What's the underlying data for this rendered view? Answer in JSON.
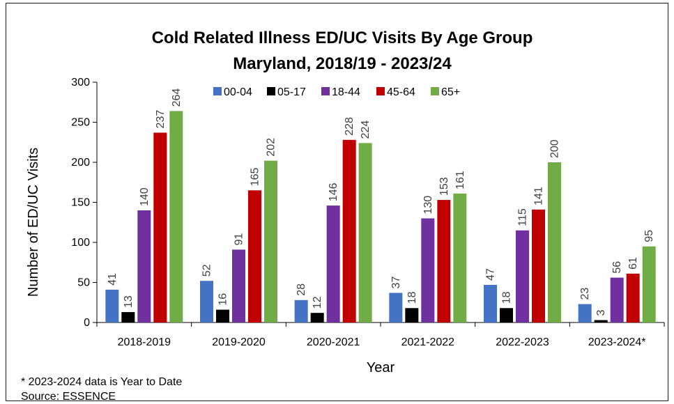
{
  "chart_data": {
    "type": "bar",
    "title": "Cold Related Illness ED/UC Visits By Age Group",
    "subtitle": "Maryland, 2018/19 - 2023/24",
    "xlabel": "Year",
    "ylabel": "Number of ED/UC Visits",
    "ylim": [
      0,
      300
    ],
    "yticks": [
      0,
      50,
      100,
      150,
      200,
      250,
      300
    ],
    "grid": false,
    "legend_position": "top",
    "categories": [
      "2018-2019",
      "2019-2020",
      "2020-2021",
      "2021-2022",
      "2022-2023",
      "2023-2024*"
    ],
    "series": [
      {
        "name": "00-04",
        "color": "#4472C4",
        "values": [
          41,
          52,
          28,
          37,
          47,
          23
        ]
      },
      {
        "name": "05-17",
        "color": "#000000",
        "values": [
          13,
          16,
          12,
          18,
          18,
          3
        ]
      },
      {
        "name": "18-44",
        "color": "#7030A0",
        "values": [
          140,
          91,
          146,
          130,
          115,
          56
        ]
      },
      {
        "name": "45-64",
        "color": "#C00000",
        "values": [
          237,
          165,
          228,
          153,
          141,
          61
        ]
      },
      {
        "name": "65+",
        "color": "#70AD47",
        "values": [
          264,
          202,
          224,
          161,
          200,
          95
        ]
      }
    ]
  },
  "footnotes": {
    "note": "*  2023-2024 data is Year to Date",
    "source": "Source: ESSENCE"
  }
}
